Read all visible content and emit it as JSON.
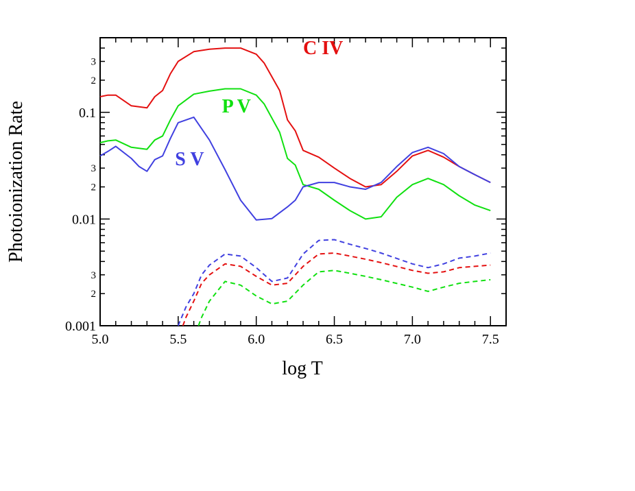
{
  "chart_data": {
    "type": "line",
    "xlabel": "log T",
    "ylabel": "Photoionization Rate",
    "xlim": [
      5.0,
      7.6
    ],
    "ylim": [
      0.001,
      0.5
    ],
    "yscale": "log",
    "grid": false,
    "x_ticks": [
      "5.0",
      "5.5",
      "6.0",
      "6.5",
      "7.0",
      "7.5"
    ],
    "y_ticks_major": [
      "0.001",
      "0.01",
      "0.1"
    ],
    "y_ticks_minor": [
      "2",
      "3"
    ],
    "annotations": [
      {
        "text": "C IV",
        "color": "#e41010",
        "x": 6.3,
        "y": 0.35
      },
      {
        "text": "P V",
        "color": "#10e010",
        "x": 5.78,
        "y": 0.1
      },
      {
        "text": "S V",
        "color": "#4040e0",
        "x": 5.48,
        "y": 0.032
      }
    ],
    "series": [
      {
        "color": "#e41010",
        "dash": "solid",
        "x": [
          5.0,
          5.05,
          5.1,
          5.2,
          5.3,
          5.35,
          5.4,
          5.45,
          5.5,
          5.6,
          5.7,
          5.8,
          5.9,
          6.0,
          6.05,
          6.15,
          6.2,
          6.25,
          6.3,
          6.4,
          6.5,
          6.6,
          6.7,
          6.8,
          6.9,
          7.0,
          7.1,
          7.2,
          7.3,
          7.4,
          7.5
        ],
        "y": [
          0.14,
          0.145,
          0.145,
          0.115,
          0.11,
          0.14,
          0.16,
          0.23,
          0.3,
          0.37,
          0.39,
          0.4,
          0.4,
          0.35,
          0.29,
          0.16,
          0.085,
          0.067,
          0.044,
          0.038,
          0.03,
          0.024,
          0.02,
          0.021,
          0.028,
          0.039,
          0.044,
          0.038,
          0.031,
          0.026,
          0.022
        ]
      },
      {
        "color": "#10e010",
        "dash": "solid",
        "x": [
          5.0,
          5.05,
          5.1,
          5.2,
          5.3,
          5.35,
          5.4,
          5.45,
          5.5,
          5.6,
          5.7,
          5.8,
          5.9,
          6.0,
          6.05,
          6.15,
          6.2,
          6.25,
          6.3,
          6.4,
          6.5,
          6.6,
          6.7,
          6.8,
          6.9,
          7.0,
          7.1,
          7.2,
          7.3,
          7.4,
          7.5
        ],
        "y": [
          0.052,
          0.054,
          0.055,
          0.047,
          0.045,
          0.055,
          0.06,
          0.085,
          0.115,
          0.148,
          0.158,
          0.166,
          0.166,
          0.145,
          0.12,
          0.065,
          0.037,
          0.032,
          0.021,
          0.019,
          0.015,
          0.012,
          0.01,
          0.0105,
          0.016,
          0.021,
          0.024,
          0.021,
          0.0165,
          0.0135,
          0.012
        ]
      },
      {
        "color": "#4040e0",
        "dash": "solid",
        "x": [
          5.0,
          5.05,
          5.1,
          5.2,
          5.25,
          5.3,
          5.35,
          5.4,
          5.45,
          5.5,
          5.6,
          5.7,
          5.8,
          5.9,
          6.0,
          6.1,
          6.2,
          6.25,
          6.3,
          6.4,
          6.5,
          6.6,
          6.7,
          6.8,
          6.9,
          7.0,
          7.1,
          7.2,
          7.3,
          7.4,
          7.5
        ],
        "y": [
          0.039,
          0.043,
          0.048,
          0.037,
          0.031,
          0.028,
          0.036,
          0.039,
          0.057,
          0.08,
          0.09,
          0.055,
          0.029,
          0.015,
          0.0098,
          0.0101,
          0.013,
          0.015,
          0.02,
          0.022,
          0.022,
          0.02,
          0.019,
          0.022,
          0.031,
          0.042,
          0.047,
          0.041,
          0.031,
          0.026,
          0.022
        ]
      },
      {
        "color": "#4040e0",
        "dash": "dashed",
        "x": [
          5.5,
          5.55,
          5.6,
          5.65,
          5.7,
          5.8,
          5.9,
          6.0,
          6.1,
          6.2,
          6.3,
          6.4,
          6.5,
          6.6,
          6.7,
          6.8,
          7.0,
          7.1,
          7.2,
          7.3,
          7.4,
          7.5
        ],
        "y": [
          0.001,
          0.0015,
          0.002,
          0.003,
          0.0037,
          0.0047,
          0.0045,
          0.0035,
          0.0026,
          0.0028,
          0.0047,
          0.0063,
          0.0064,
          0.0058,
          0.0053,
          0.0048,
          0.0038,
          0.0035,
          0.0038,
          0.0043,
          0.0045,
          0.0048
        ]
      },
      {
        "color": "#e41010",
        "dash": "dashed",
        "x": [
          5.53,
          5.55,
          5.6,
          5.65,
          5.7,
          5.8,
          5.9,
          6.0,
          6.1,
          6.2,
          6.3,
          6.4,
          6.5,
          6.6,
          6.7,
          6.8,
          7.0,
          7.1,
          7.2,
          7.3,
          7.4,
          7.5
        ],
        "y": [
          0.001,
          0.0012,
          0.0017,
          0.0025,
          0.003,
          0.0038,
          0.0036,
          0.0029,
          0.0024,
          0.0025,
          0.0036,
          0.0047,
          0.0048,
          0.0045,
          0.0042,
          0.0039,
          0.0033,
          0.0031,
          0.0032,
          0.0035,
          0.0036,
          0.0037
        ]
      },
      {
        "color": "#10e010",
        "dash": "dashed",
        "x": [
          5.63,
          5.65,
          5.7,
          5.8,
          5.9,
          6.0,
          6.1,
          6.2,
          6.3,
          6.4,
          6.5,
          6.6,
          6.7,
          6.8,
          7.0,
          7.1,
          7.2,
          7.3,
          7.4,
          7.5
        ],
        "y": [
          0.001,
          0.0012,
          0.0017,
          0.0026,
          0.0024,
          0.0019,
          0.0016,
          0.0017,
          0.0024,
          0.0032,
          0.0033,
          0.0031,
          0.0029,
          0.0027,
          0.0023,
          0.0021,
          0.0023,
          0.0025,
          0.0026,
          0.0027
        ]
      }
    ]
  }
}
